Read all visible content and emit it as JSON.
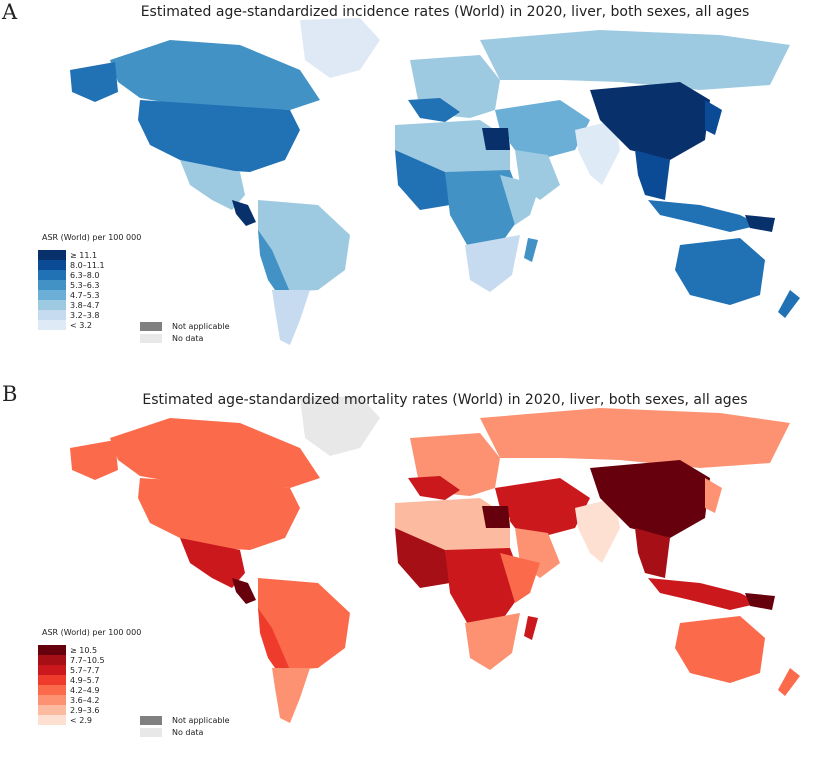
{
  "figure": {
    "panels": [
      {
        "letter": "A",
        "title": "Estimated age-standardized incidence rates (World) in 2020, liver, both sexes, all ages",
        "legend_title": "ASR (World) per 100 000",
        "bins": [
          "≥ 11.1",
          "8.0–11.1",
          "6.3–8.0",
          "5.3–6.3",
          "4.7–5.3",
          "3.8–4.7",
          "3.2–3.8",
          "< 3.2"
        ],
        "colors": [
          "#08306b",
          "#0b4a94",
          "#2171b5",
          "#4292c6",
          "#6baed6",
          "#9ecae1",
          "#c6dbef",
          "#deebf7"
        ],
        "not_applicable": "Not applicable",
        "no_data": "No data"
      },
      {
        "letter": "B",
        "title": "Estimated age-standardized mortality rates (World) in 2020, liver, both sexes, all ages",
        "legend_title": "ASR (World) per 100 000",
        "bins": [
          "≥ 10.5",
          "7.7–10.5",
          "5.7–7.7",
          "4.9–5.7",
          "4.2–4.9",
          "3.6–4.2",
          "2.9–3.6",
          "< 2.9"
        ],
        "colors": [
          "#67000d",
          "#a50f15",
          "#cb181d",
          "#ef3b2c",
          "#fb6a4a",
          "#fc9272",
          "#fcbba1",
          "#fee0d2"
        ],
        "not_applicable": "Not applicable",
        "no_data": "No data"
      }
    ]
  },
  "colors": {
    "not_applicable": "#808080",
    "no_data": "#e8e8e8",
    "border": "#ffffff"
  }
}
